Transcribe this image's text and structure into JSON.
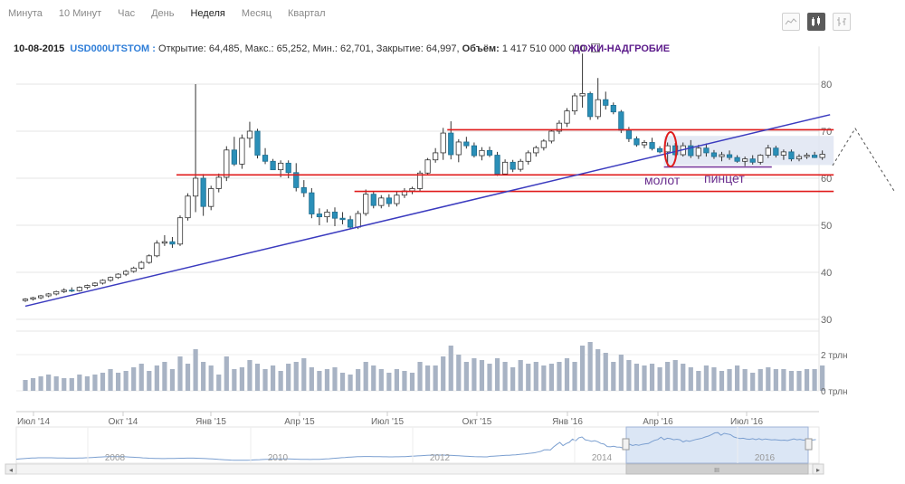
{
  "tabs": [
    {
      "label": "Минута",
      "active": false
    },
    {
      "label": "10 Минут",
      "active": false
    },
    {
      "label": "Час",
      "active": false
    },
    {
      "label": "День",
      "active": false
    },
    {
      "label": "Неделя",
      "active": true
    },
    {
      "label": "Месяц",
      "active": false
    },
    {
      "label": "Квартал",
      "active": false
    }
  ],
  "info": {
    "date": "10-08-2015",
    "symbol": "USD000UTSTOM :",
    "open_label": "Открытие:",
    "open": "64,485",
    "high_label": "Макс.:",
    "high": "65,252",
    "low_label": "Мин.:",
    "low": "62,701",
    "close_label": "Закрытие:",
    "close": "64,997",
    "volume_label": "Объём:",
    "volume": "1 417 510 000 000"
  },
  "annotations": {
    "doji": "ДОЖИ-НАДГРОБИЕ",
    "hammer": "молот",
    "tweezer": "пинцет"
  },
  "chart_data": {
    "type": "candlestick",
    "title": "",
    "y_ticks": [
      "30",
      "40",
      "50",
      "60",
      "70",
      "80"
    ],
    "ylim": [
      30,
      88
    ],
    "volume_ticks": [
      "0 трлн",
      "2 трлн"
    ],
    "x_ticks": [
      "Июл '14",
      "Окт '14",
      "Янв '15",
      "Апр '15",
      "Июл '15",
      "Окт '15",
      "Янв '16",
      "Апр '16",
      "Июл '16"
    ],
    "navigator_years": [
      "2008",
      "2010",
      "2012",
      "2014",
      "2016"
    ],
    "colors": {
      "up": "#ffffff",
      "down": "#2a8fb8",
      "outline": "#333333",
      "support": "#e01b1b",
      "trend": "#3b3bbf",
      "volume": "#a8b3c4"
    },
    "candles": [
      [
        34.0,
        34.5,
        33.7,
        34.3,
        0.6
      ],
      [
        34.3,
        34.8,
        34.0,
        34.6,
        0.7
      ],
      [
        34.6,
        35.2,
        34.3,
        35.0,
        0.8
      ],
      [
        35.0,
        35.6,
        34.7,
        35.4,
        0.9
      ],
      [
        35.4,
        36.1,
        35.1,
        35.9,
        0.8
      ],
      [
        35.9,
        36.6,
        35.6,
        36.2,
        0.7
      ],
      [
        36.2,
        36.8,
        35.8,
        36.1,
        0.7
      ],
      [
        36.1,
        37.0,
        35.9,
        36.8,
        0.9
      ],
      [
        36.8,
        37.4,
        36.4,
        37.2,
        0.8
      ],
      [
        37.2,
        37.9,
        36.9,
        37.7,
        0.9
      ],
      [
        37.7,
        38.5,
        37.4,
        38.3,
        1.0
      ],
      [
        38.3,
        39.1,
        38.0,
        38.9,
        1.2
      ],
      [
        38.9,
        39.8,
        38.6,
        39.6,
        1.0
      ],
      [
        39.6,
        40.5,
        39.2,
        40.2,
        1.1
      ],
      [
        40.2,
        41.2,
        39.9,
        40.9,
        1.3
      ],
      [
        40.9,
        42.4,
        40.6,
        42.1,
        1.5
      ],
      [
        42.1,
        43.8,
        41.8,
        43.5,
        1.1
      ],
      [
        43.5,
        46.8,
        43.2,
        46.2,
        1.4
      ],
      [
        46.2,
        47.9,
        45.6,
        46.5,
        1.6
      ],
      [
        46.5,
        47.5,
        45.2,
        46.0,
        1.2
      ],
      [
        46.0,
        52.1,
        45.6,
        51.6,
        1.9
      ],
      [
        51.6,
        56.8,
        51.0,
        56.2,
        1.5
      ],
      [
        56.2,
        80.0,
        52.8,
        60.0,
        2.3
      ],
      [
        60.0,
        60.9,
        52.0,
        54.0,
        1.6
      ],
      [
        54.0,
        58.4,
        53.2,
        57.8,
        1.4
      ],
      [
        57.8,
        61.0,
        57.0,
        60.2,
        0.9
      ],
      [
        60.2,
        66.8,
        59.4,
        66.0,
        1.9
      ],
      [
        66.0,
        68.8,
        62.6,
        63.0,
        1.2
      ],
      [
        63.0,
        69.3,
        62.0,
        68.5,
        1.3
      ],
      [
        68.5,
        72.0,
        66.5,
        70.0,
        1.7
      ],
      [
        70.0,
        70.5,
        64.2,
        64.9,
        1.5
      ],
      [
        64.9,
        66.4,
        63.0,
        63.6,
        1.2
      ],
      [
        63.6,
        64.1,
        61.8,
        61.8,
        1.4
      ],
      [
        61.8,
        63.8,
        60.2,
        63.2,
        1.1
      ],
      [
        63.2,
        63.8,
        60.0,
        61.2,
        1.5
      ],
      [
        61.2,
        63.2,
        57.2,
        58.0,
        1.6
      ],
      [
        58.0,
        59.6,
        56.0,
        56.9,
        1.8
      ],
      [
        56.9,
        57.9,
        51.5,
        52.4,
        1.3
      ],
      [
        52.4,
        53.6,
        50.0,
        51.8,
        1.1
      ],
      [
        51.8,
        53.4,
        50.6,
        52.8,
        1.2
      ],
      [
        52.8,
        53.8,
        49.8,
        51.5,
        1.3
      ],
      [
        51.5,
        52.8,
        50.2,
        51.2,
        1.0
      ],
      [
        51.2,
        52.0,
        49.3,
        49.6,
        0.9
      ],
      [
        49.6,
        53.1,
        49.2,
        52.5,
        1.2
      ],
      [
        52.5,
        57.6,
        52.0,
        56.6,
        1.6
      ],
      [
        56.6,
        57.3,
        53.6,
        54.2,
        1.4
      ],
      [
        54.2,
        56.4,
        53.6,
        55.8,
        1.2
      ],
      [
        55.8,
        56.6,
        53.9,
        54.6,
        1.0
      ],
      [
        54.6,
        57.2,
        54.0,
        56.4,
        1.2
      ],
      [
        56.4,
        57.9,
        55.8,
        57.3,
        1.1
      ],
      [
        57.3,
        58.2,
        56.6,
        57.8,
        1.0
      ],
      [
        57.8,
        61.6,
        57.3,
        61.1,
        1.6
      ],
      [
        61.1,
        64.3,
        60.6,
        63.9,
        1.4
      ],
      [
        63.9,
        66.4,
        63.3,
        65.4,
        1.4
      ],
      [
        65.4,
        70.7,
        63.9,
        69.6,
        1.9
      ],
      [
        69.6,
        72.1,
        64.0,
        65.0,
        2.5
      ],
      [
        65.0,
        68.3,
        63.4,
        67.7,
        2.0
      ],
      [
        67.7,
        68.8,
        66.3,
        66.9,
        1.6
      ],
      [
        66.9,
        67.6,
        64.4,
        64.8,
        1.8
      ],
      [
        64.8,
        66.6,
        63.8,
        65.9,
        1.7
      ],
      [
        65.9,
        66.7,
        64.5,
        64.9,
        1.5
      ],
      [
        64.9,
        65.6,
        60.5,
        60.9,
        1.8
      ],
      [
        60.9,
        64.0,
        60.6,
        63.4,
        1.6
      ],
      [
        63.4,
        63.9,
        61.3,
        61.9,
        1.3
      ],
      [
        61.9,
        64.1,
        61.4,
        63.6,
        1.7
      ],
      [
        63.6,
        65.9,
        62.9,
        65.4,
        1.5
      ],
      [
        65.4,
        66.9,
        64.6,
        66.5,
        1.6
      ],
      [
        66.5,
        68.3,
        65.9,
        67.9,
        1.4
      ],
      [
        67.9,
        70.4,
        67.4,
        70.0,
        1.5
      ],
      [
        70.0,
        72.3,
        69.4,
        71.7,
        1.6
      ],
      [
        71.7,
        74.9,
        70.9,
        74.3,
        1.8
      ],
      [
        74.3,
        78.1,
        73.5,
        77.5,
        1.6
      ],
      [
        77.5,
        86.5,
        75.0,
        78.0,
        2.5
      ],
      [
        78.0,
        78.4,
        72.4,
        73.1,
        2.7
      ],
      [
        73.1,
        81.3,
        72.5,
        76.7,
        2.3
      ],
      [
        76.7,
        78.4,
        74.6,
        75.5,
        2.1
      ],
      [
        75.5,
        76.1,
        73.6,
        74.1,
        1.6
      ],
      [
        74.1,
        74.5,
        69.6,
        70.2,
        2.0
      ],
      [
        70.2,
        70.9,
        67.7,
        68.4,
        1.7
      ],
      [
        68.4,
        68.9,
        66.7,
        67.1,
        1.5
      ],
      [
        67.1,
        68.1,
        66.4,
        67.6,
        1.4
      ],
      [
        67.6,
        68.6,
        65.9,
        66.3,
        1.5
      ],
      [
        66.3,
        66.8,
        65.3,
        65.6,
        1.3
      ],
      [
        65.6,
        67.6,
        62.6,
        66.9,
        1.6
      ],
      [
        66.9,
        67.5,
        64.6,
        65.0,
        1.7
      ],
      [
        65.0,
        67.6,
        64.6,
        66.9,
        1.5
      ],
      [
        66.9,
        68.1,
        64.3,
        64.8,
        1.3
      ],
      [
        64.8,
        67.1,
        64.1,
        66.4,
        1.1
      ],
      [
        66.4,
        67.4,
        64.6,
        65.4,
        1.4
      ],
      [
        65.4,
        66.0,
        64.1,
        64.6,
        1.3
      ],
      [
        64.6,
        65.6,
        63.6,
        65.0,
        1.1
      ],
      [
        65.0,
        65.9,
        63.9,
        64.4,
        1.2
      ],
      [
        64.4,
        64.9,
        63.3,
        63.6,
        1.4
      ],
      [
        63.6,
        64.6,
        62.6,
        64.1,
        1.2
      ],
      [
        64.1,
        64.9,
        62.9,
        63.4,
        1.0
      ],
      [
        63.4,
        65.1,
        62.9,
        64.9,
        1.2
      ],
      [
        64.9,
        67.1,
        64.3,
        66.4,
        1.3
      ],
      [
        66.4,
        66.9,
        64.4,
        64.9,
        1.2
      ],
      [
        64.9,
        66.1,
        63.9,
        65.6,
        1.2
      ],
      [
        65.6,
        66.1,
        63.6,
        64.1,
        1.1
      ],
      [
        64.1,
        65.1,
        63.6,
        64.6,
        1.1
      ],
      [
        64.6,
        65.4,
        64.1,
        64.9,
        1.2
      ],
      [
        64.9,
        65.6,
        64.3,
        64.4,
        1.2
      ],
      [
        64.4,
        65.9,
        63.9,
        65.1,
        1.4
      ]
    ],
    "support_lines": [
      {
        "y": 70.3,
        "from": 55,
        "to": 104
      },
      {
        "y": 60.7,
        "from": 20,
        "to": 104
      },
      {
        "y": 57.2,
        "from": 43,
        "to": 104
      },
      {
        "y": 62.4,
        "from": 83,
        "to": 96
      }
    ],
    "trendline": {
      "from": [
        0,
        32.8
      ],
      "to": [
        104,
        73.5
      ]
    },
    "shaded_range": {
      "from": 83,
      "to": 104,
      "ymin": 62.8,
      "ymax": 69.0
    }
  }
}
